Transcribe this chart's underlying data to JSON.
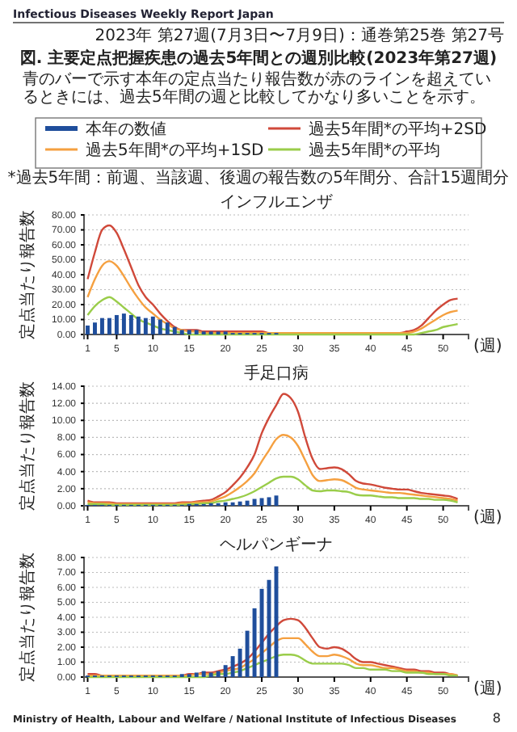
{
  "chart_data": [
    {
      "type": "bar",
      "title": "インフルエンザ",
      "xlabel": "(週)",
      "ylabel": "定点当たり報告数",
      "legend": "top",
      "grid": "y",
      "annotations": [
        "Infectious Diseases Weekly Report Japan",
        "2023年 第27週(7月3日〜7月9日)：通巻第25巻 第27号",
        "図. 主要定点把握疾患の過去5年間との週別比較(2023年第27週)",
        "青のバーで示す本年の定点当たり報告数が赤のラインを超えているときには、過去5年間の週と比較してかなり多いことを示す。",
        "*過去5年間：前週、当該週、後週の報告数の5年間分、合計15週間分",
        "Ministry of Health, Labour and Welfare / National Institute of Infectious Diseases",
        "8"
      ],
      "x": [
        1,
        2,
        3,
        4,
        5,
        6,
        7,
        8,
        9,
        10,
        11,
        12,
        13,
        14,
        15,
        16,
        17,
        18,
        19,
        20,
        21,
        22,
        23,
        24,
        25,
        26,
        27,
        28,
        29,
        30,
        31,
        32,
        33,
        34,
        35,
        36,
        37,
        38,
        39,
        40,
        41,
        42,
        43,
        44,
        45,
        46,
        47,
        48,
        49,
        50,
        51,
        52
      ],
      "xlim": [
        0.5,
        53.5
      ],
      "xticks": [
        1,
        5,
        10,
        15,
        20,
        25,
        30,
        35,
        40,
        45,
        50
      ],
      "ylim": [
        0,
        80
      ],
      "yticks": [
        {
          "value": 0,
          "label": "0.00"
        },
        {
          "value": 10,
          "label": "10.00"
        },
        {
          "value": 20,
          "label": "20.00"
        },
        {
          "value": 30,
          "label": "30.00"
        },
        {
          "value": 40,
          "label": "40.00"
        },
        {
          "value": 50,
          "label": "50.00"
        },
        {
          "value": 60,
          "label": "60.00"
        },
        {
          "value": 70,
          "label": "70.00"
        },
        {
          "value": 80,
          "label": "80.00"
        }
      ],
      "series": [
        {
          "name": "本年の数値",
          "type": "bar",
          "color": "#1f4e9c",
          "values": [
            6,
            8,
            11,
            11,
            13,
            14,
            13,
            12,
            11,
            12,
            10,
            8,
            5,
            3,
            3,
            3,
            2,
            2,
            2,
            2,
            1,
            1,
            1,
            1,
            1,
            1,
            1,
            null,
            null,
            null,
            null,
            null,
            null,
            null,
            null,
            null,
            null,
            null,
            null,
            null,
            null,
            null,
            null,
            null,
            null,
            null,
            null,
            null,
            null,
            null,
            null,
            null
          ]
        },
        {
          "name": "過去5年間*の平均+2SD",
          "type": "line",
          "color": "#d0493a",
          "values": [
            37,
            55,
            70,
            73,
            68,
            57,
            45,
            33,
            25,
            20,
            14,
            9,
            5,
            3,
            3,
            3,
            2,
            2,
            2,
            2,
            2,
            2,
            2,
            2,
            2,
            1,
            1,
            1,
            1,
            1,
            1,
            1,
            1,
            1,
            1,
            1,
            1,
            1,
            1,
            1,
            1,
            1,
            1,
            1,
            2,
            3,
            6,
            11,
            16,
            20,
            23,
            24
          ]
        },
        {
          "name": "過去5年間*の平均+1SD",
          "type": "line",
          "color": "#f5a040",
          "values": [
            25,
            37,
            46,
            49,
            46,
            39,
            31,
            24,
            18,
            14,
            10,
            7,
            4,
            3,
            2,
            2,
            1,
            1,
            1,
            1,
            1,
            1,
            1,
            1,
            1,
            1,
            1,
            1,
            1,
            1,
            1,
            1,
            1,
            1,
            1,
            1,
            1,
            1,
            1,
            1,
            1,
            1,
            1,
            1,
            1,
            2,
            4,
            7,
            10,
            13,
            15,
            16
          ]
        },
        {
          "name": "過去5年間*の平均",
          "type": "line",
          "color": "#9acd4a",
          "values": [
            13,
            19,
            23,
            25,
            22,
            18,
            14,
            10,
            8,
            6,
            4,
            3,
            2,
            1,
            0,
            0,
            0,
            0,
            0,
            0,
            0,
            0,
            0,
            0,
            0,
            0,
            0,
            0,
            0,
            0,
            0,
            0,
            0,
            0,
            0,
            0,
            0,
            0,
            0,
            0,
            0,
            0,
            0,
            0,
            0,
            0,
            1,
            2,
            3,
            5,
            6,
            7
          ]
        }
      ]
    },
    {
      "type": "bar",
      "title": "手足口病",
      "xlabel": "(週)",
      "ylabel": "定点当たり報告数",
      "grid": "y",
      "x": [
        1,
        2,
        3,
        4,
        5,
        6,
        7,
        8,
        9,
        10,
        11,
        12,
        13,
        14,
        15,
        16,
        17,
        18,
        19,
        20,
        21,
        22,
        23,
        24,
        25,
        26,
        27,
        28,
        29,
        30,
        31,
        32,
        33,
        34,
        35,
        36,
        37,
        38,
        39,
        40,
        41,
        42,
        43,
        44,
        45,
        46,
        47,
        48,
        49,
        50,
        51,
        52
      ],
      "xlim": [
        0.5,
        53.5
      ],
      "xticks": [
        1,
        5,
        10,
        15,
        20,
        25,
        30,
        35,
        40,
        45,
        50
      ],
      "ylim": [
        0,
        14
      ],
      "yticks": [
        {
          "value": 0,
          "label": "0.00"
        },
        {
          "value": 2,
          "label": "2.00"
        },
        {
          "value": 4,
          "label": "4.00"
        },
        {
          "value": 6,
          "label": "6.00"
        },
        {
          "value": 8,
          "label": "8.00"
        },
        {
          "value": 10,
          "label": "10.00"
        },
        {
          "value": 12,
          "label": "12.00"
        },
        {
          "value": 14,
          "label": "14.00"
        }
      ],
      "series": [
        {
          "type": "bar",
          "color": "#1f4e9c",
          "values": [
            0.1,
            0.1,
            0.1,
            0.1,
            0.1,
            0.1,
            0.1,
            0.1,
            0.1,
            0.1,
            0.1,
            0.1,
            0.1,
            0.1,
            0.2,
            0.2,
            0.2,
            0.3,
            0.3,
            0.4,
            0.4,
            0.5,
            0.6,
            0.8,
            0.9,
            1,
            1.2,
            null,
            null,
            null,
            null,
            null,
            null,
            null,
            null,
            null,
            null,
            null,
            null,
            null,
            null,
            null,
            null,
            null,
            null,
            null,
            null,
            null,
            null,
            null,
            null,
            null
          ]
        },
        {
          "type": "line",
          "color": "#d0493a",
          "values": [
            0.6,
            0.4,
            0.4,
            0.4,
            0.3,
            0.3,
            0.3,
            0.3,
            0.3,
            0.3,
            0.3,
            0.3,
            0.3,
            0.4,
            0.4,
            0.5,
            0.6,
            0.7,
            1.1,
            1.6,
            2.4,
            3.3,
            4.5,
            6,
            8.5,
            10.3,
            11.8,
            13.1,
            12.6,
            11,
            8,
            5.5,
            4.3,
            4.4,
            4.5,
            4.3,
            3.7,
            2.9,
            2.6,
            2.5,
            2.3,
            2.1,
            2,
            1.9,
            1.9,
            1.7,
            1.5,
            1.4,
            1.3,
            1.2,
            1.1,
            0.8
          ]
        },
        {
          "type": "line",
          "color": "#f5a040",
          "values": [
            0.4,
            0.3,
            0.3,
            0.3,
            0.2,
            0.2,
            0.2,
            0.2,
            0.2,
            0.2,
            0.2,
            0.2,
            0.2,
            0.3,
            0.3,
            0.4,
            0.4,
            0.5,
            0.8,
            1.1,
            1.6,
            2.2,
            2.9,
            3.8,
            5.2,
            6.5,
            7.8,
            8.3,
            8,
            7,
            5.3,
            3.6,
            2.9,
            3,
            3.1,
            3,
            2.6,
            2.1,
            1.9,
            1.8,
            1.7,
            1.6,
            1.5,
            1.5,
            1.4,
            1.3,
            1.2,
            1.1,
            1,
            0.9,
            0.8,
            0.6
          ]
        },
        {
          "type": "line",
          "color": "#9acd4a",
          "values": [
            0.2,
            0.2,
            0.2,
            0.1,
            0.1,
            0.1,
            0.1,
            0.1,
            0.1,
            0.1,
            0.1,
            0.1,
            0.1,
            0.1,
            0.2,
            0.2,
            0.3,
            0.3,
            0.5,
            0.6,
            0.8,
            1,
            1.3,
            1.7,
            2.2,
            2.7,
            3.2,
            3.4,
            3.4,
            3.1,
            2.4,
            1.8,
            1.7,
            1.8,
            1.8,
            1.7,
            1.6,
            1.3,
            1.2,
            1.2,
            1.1,
            1,
            1,
            0.9,
            0.9,
            0.9,
            0.8,
            0.8,
            0.7,
            0.7,
            0.6,
            0.4
          ]
        }
      ]
    },
    {
      "type": "bar",
      "title": "ヘルパンギーナ",
      "xlabel": "(週)",
      "ylabel": "定点当たり報告数",
      "grid": "y",
      "x": [
        1,
        2,
        3,
        4,
        5,
        6,
        7,
        8,
        9,
        10,
        11,
        12,
        13,
        14,
        15,
        16,
        17,
        18,
        19,
        20,
        21,
        22,
        23,
        24,
        25,
        26,
        27,
        28,
        29,
        30,
        31,
        32,
        33,
        34,
        35,
        36,
        37,
        38,
        39,
        40,
        41,
        42,
        43,
        44,
        45,
        46,
        47,
        48,
        49,
        50,
        51,
        52
      ],
      "xlim": [
        0.5,
        53.5
      ],
      "xticks": [
        1,
        5,
        10,
        15,
        20,
        25,
        30,
        35,
        40,
        45,
        50
      ],
      "ylim": [
        0,
        8
      ],
      "yticks": [
        {
          "value": 0,
          "label": "0.00"
        },
        {
          "value": 1,
          "label": "1.00"
        },
        {
          "value": 2,
          "label": "2.00"
        },
        {
          "value": 3,
          "label": "3.00"
        },
        {
          "value": 4,
          "label": "4.00"
        },
        {
          "value": 5,
          "label": "5.00"
        },
        {
          "value": 6,
          "label": "6.00"
        },
        {
          "value": 7,
          "label": "7.00"
        },
        {
          "value": 8,
          "label": "8.00"
        }
      ],
      "series": [
        {
          "type": "bar",
          "color": "#1f4e9c",
          "values": [
            0.1,
            0.1,
            0.1,
            0.1,
            0.1,
            0.1,
            0.1,
            0.1,
            0.1,
            0.1,
            0.1,
            0.1,
            0.1,
            0.2,
            0.2,
            0.3,
            0.4,
            0.3,
            0.4,
            0.8,
            1.4,
            1.9,
            3.1,
            4.6,
            5.9,
            6.5,
            7.4,
            null,
            null,
            null,
            null,
            null,
            null,
            null,
            null,
            null,
            null,
            null,
            null,
            null,
            null,
            null,
            null,
            null,
            null,
            null,
            null,
            null,
            null,
            null,
            null,
            null
          ]
        },
        {
          "type": "line",
          "color": "#d0493a",
          "values": [
            0.2,
            0.2,
            0.1,
            0.1,
            0.1,
            0.1,
            0.1,
            0.1,
            0.1,
            0.1,
            0.1,
            0.1,
            0.1,
            0.1,
            0.2,
            0.2,
            0.3,
            0.3,
            0.4,
            0.5,
            0.7,
            0.9,
            1.2,
            1.7,
            2.3,
            2.9,
            3.4,
            3.8,
            3.9,
            3.8,
            3.3,
            2.6,
            2,
            1.9,
            2,
            1.9,
            1.6,
            1.2,
            1,
            1,
            0.9,
            0.8,
            0.7,
            0.6,
            0.5,
            0.5,
            0.4,
            0.4,
            0.3,
            0.3,
            0.2,
            0.1
          ]
        },
        {
          "type": "line",
          "color": "#f5a040",
          "values": [
            0.1,
            0.1,
            0.1,
            0.1,
            0.1,
            0.1,
            0.1,
            0.1,
            0.1,
            0.1,
            0.1,
            0.1,
            0.1,
            0.1,
            0.1,
            0.2,
            0.2,
            0.2,
            0.3,
            0.4,
            0.5,
            0.6,
            0.9,
            1.2,
            1.6,
            2,
            2.4,
            2.6,
            2.6,
            2.6,
            2.2,
            1.7,
            1.4,
            1.4,
            1.5,
            1.4,
            1.2,
            0.9,
            0.8,
            0.8,
            0.7,
            0.6,
            0.6,
            0.5,
            0.4,
            0.4,
            0.3,
            0.3,
            0.2,
            0.2,
            0.2,
            0.1
          ]
        },
        {
          "type": "line",
          "color": "#9acd4a",
          "values": [
            0,
            0,
            0,
            0,
            0,
            0,
            0,
            0,
            0,
            0,
            0,
            0,
            0,
            0,
            0,
            0,
            0,
            0.1,
            0.2,
            0.2,
            0.3,
            0.4,
            0.6,
            0.8,
            1,
            1.2,
            1.4,
            1.5,
            1.5,
            1.4,
            1.1,
            0.9,
            0.9,
            0.9,
            0.9,
            0.9,
            0.8,
            0.6,
            0.6,
            0.5,
            0.5,
            0.5,
            0.4,
            0.4,
            0.3,
            0.3,
            0.3,
            0.2,
            0.2,
            0.2,
            0.1,
            0.1
          ]
        }
      ]
    }
  ]
}
